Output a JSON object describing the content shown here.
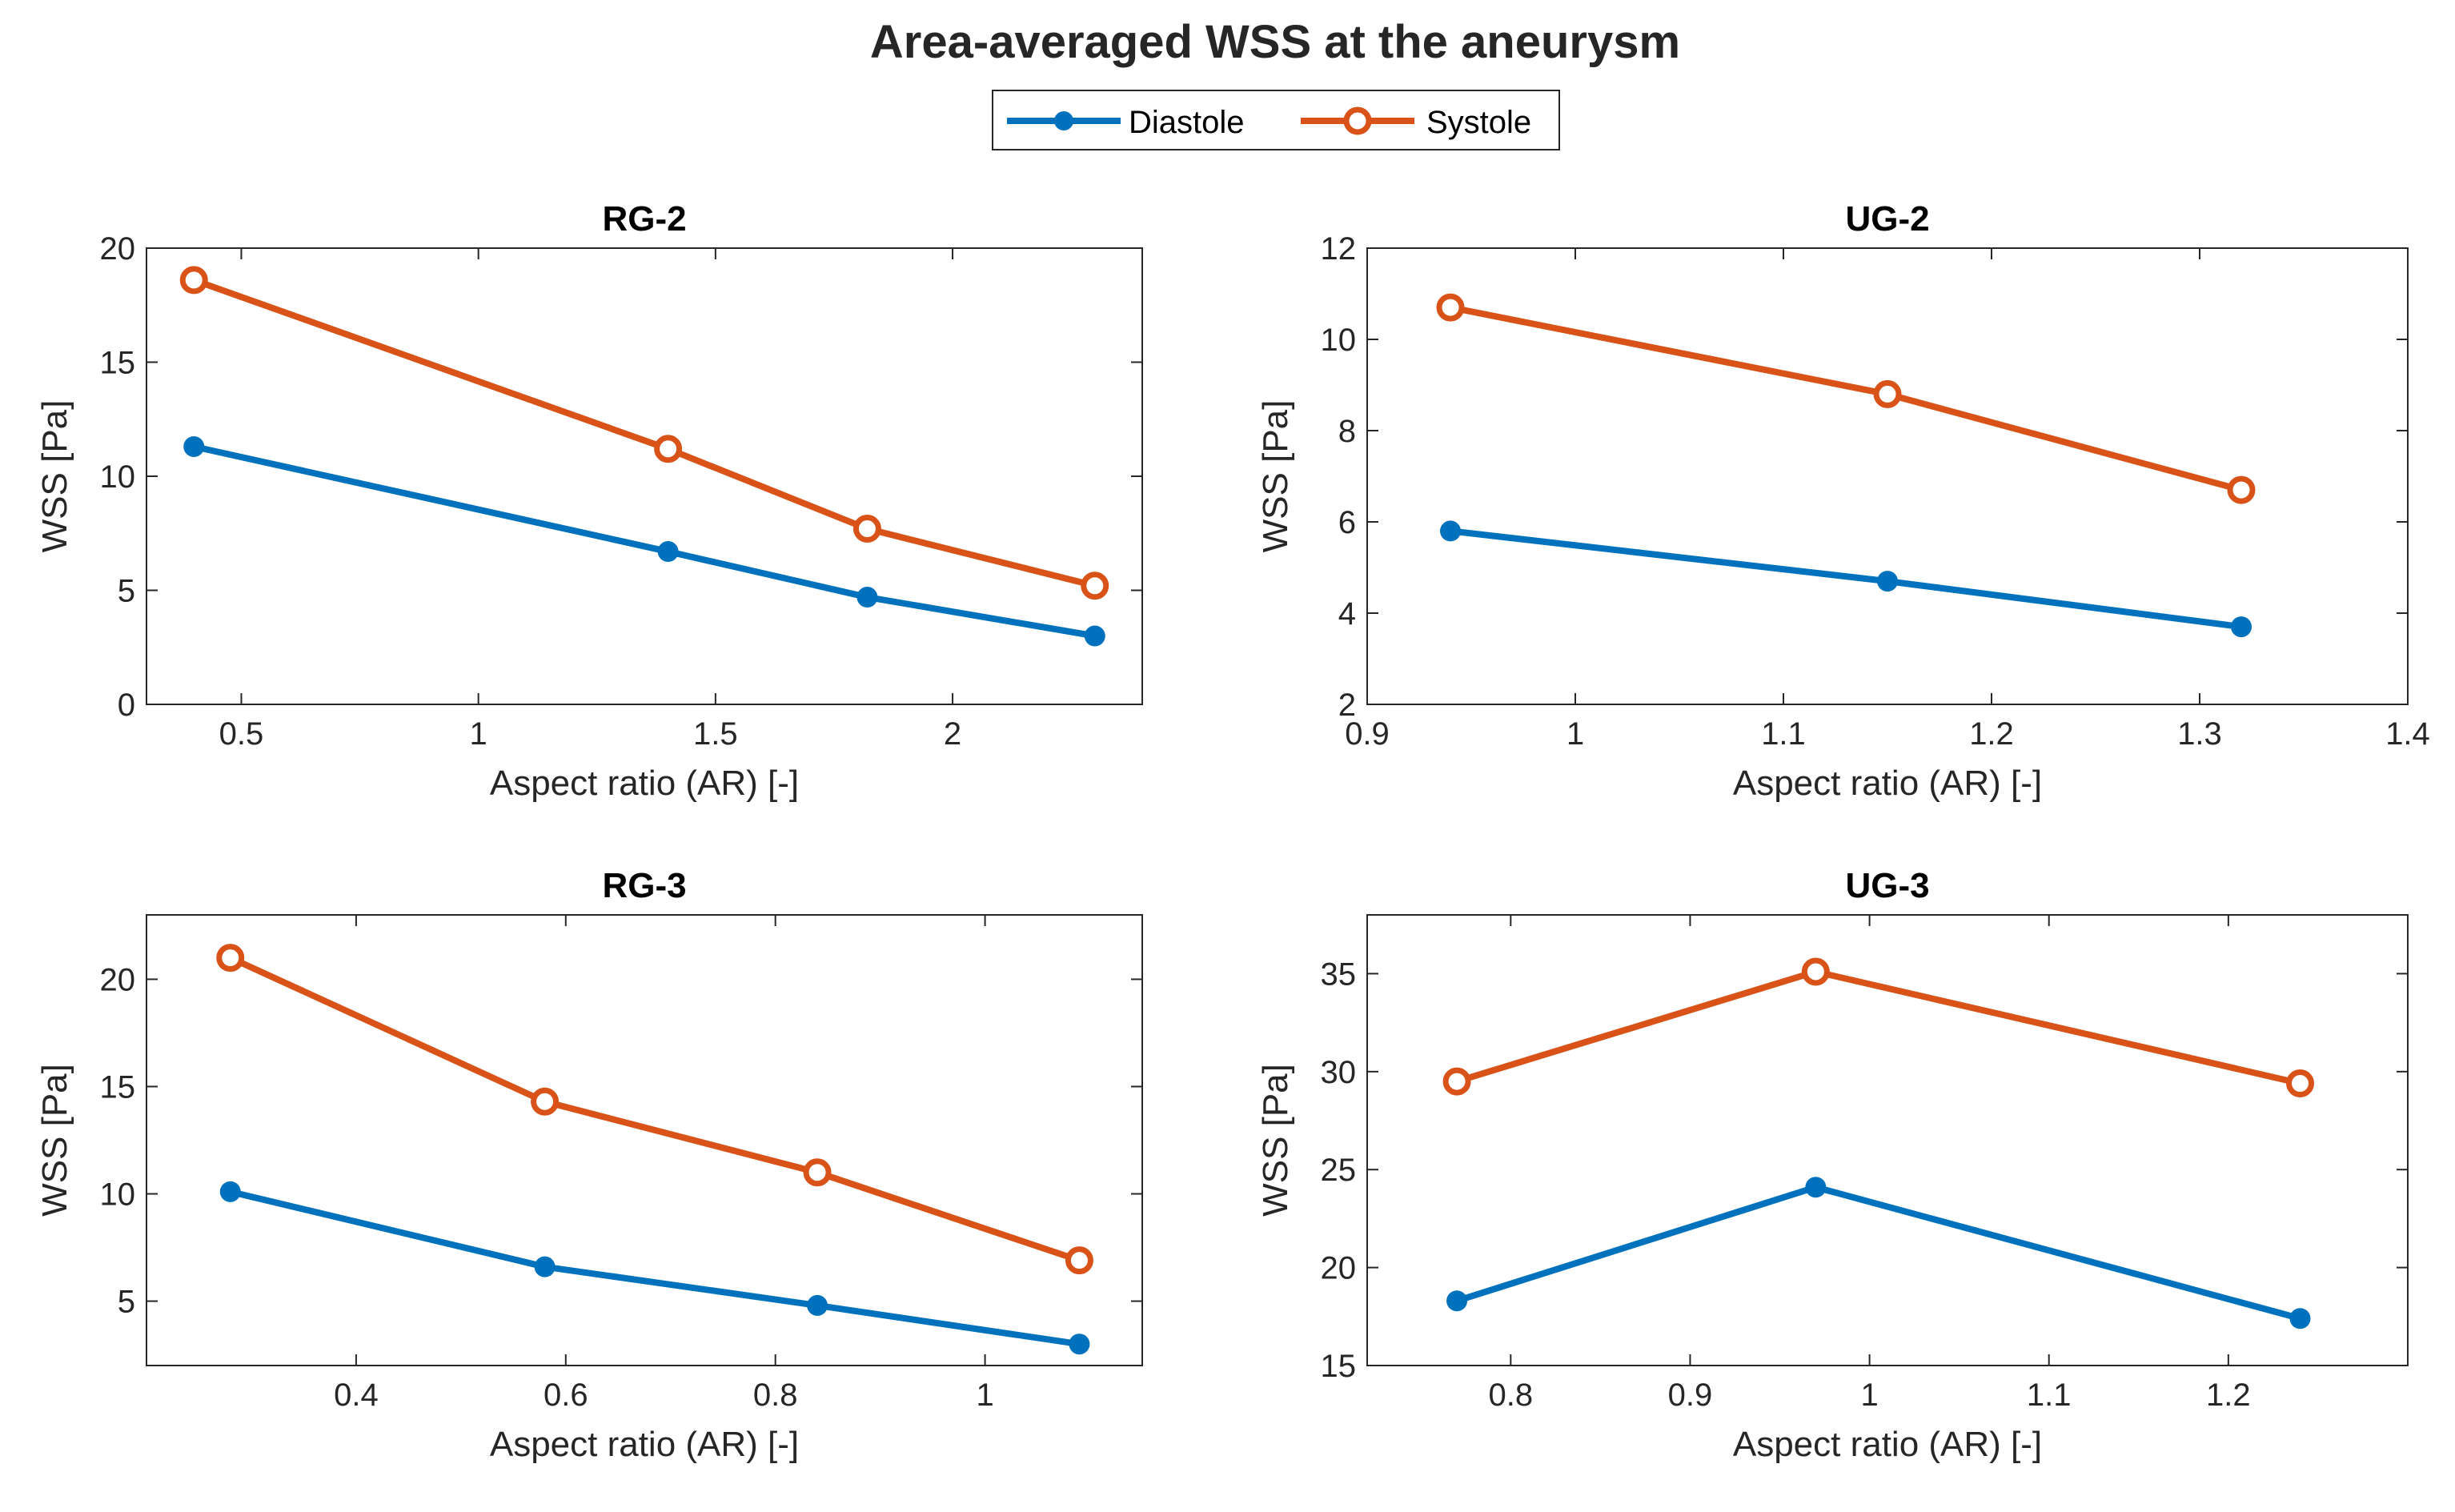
{
  "figure": {
    "title": "Area-averaged WSS at the aneurysm"
  },
  "legend": {
    "entries": [
      {
        "name": "Diastole",
        "color": "#0072BD",
        "marker": "filled-circle"
      },
      {
        "name": "Systole",
        "color": "#D95319",
        "marker": "open-circle"
      }
    ]
  },
  "chart_data": [
    {
      "type": "line",
      "title": "RG-2",
      "xlabel": "Aspect ratio (AR) [-]",
      "ylabel": "WSS [Pa]",
      "xlim": [
        0.3,
        2.4
      ],
      "ylim": [
        0,
        20
      ],
      "xticks": [
        0.5,
        1,
        1.5,
        2
      ],
      "xtick_labels": [
        "0.5",
        "1",
        "1.5",
        "2"
      ],
      "yticks": [
        0,
        5,
        10,
        15,
        20
      ],
      "ytick_labels": [
        "0",
        "5",
        "10",
        "15",
        "20"
      ],
      "x": [
        0.4,
        1.4,
        1.82,
        2.3
      ],
      "series": [
        {
          "name": "Diastole",
          "values": [
            11.3,
            6.7,
            4.7,
            3.0
          ]
        },
        {
          "name": "Systole",
          "values": [
            18.6,
            11.2,
            7.7,
            5.2
          ]
        }
      ]
    },
    {
      "type": "line",
      "title": "UG-2",
      "xlabel": "Aspect ratio (AR) [-]",
      "ylabel": "WSS [Pa]",
      "xlim": [
        0.9,
        1.4
      ],
      "ylim": [
        2,
        12
      ],
      "xticks": [
        0.9,
        1.0,
        1.1,
        1.2,
        1.3,
        1.4
      ],
      "xtick_labels": [
        "0.9",
        "1",
        "1.1",
        "1.2",
        "1.3",
        "1.4"
      ],
      "yticks": [
        2,
        4,
        6,
        8,
        10,
        12
      ],
      "ytick_labels": [
        "2",
        "4",
        "6",
        "8",
        "10",
        "12"
      ],
      "x": [
        0.94,
        1.15,
        1.32
      ],
      "series": [
        {
          "name": "Diastole",
          "values": [
            5.8,
            4.7,
            3.7
          ]
        },
        {
          "name": "Systole",
          "values": [
            10.7,
            8.8,
            6.7
          ]
        }
      ]
    },
    {
      "type": "line",
      "title": "RG-3",
      "xlabel": "Aspect ratio (AR) [-]",
      "ylabel": "WSS [Pa]",
      "xlim": [
        0.2,
        1.15
      ],
      "ylim": [
        2,
        23
      ],
      "xticks": [
        0.4,
        0.6,
        0.8,
        1.0
      ],
      "xtick_labels": [
        "0.4",
        "0.6",
        "0.8",
        "1"
      ],
      "yticks": [
        5,
        10,
        15,
        20
      ],
      "ytick_labels": [
        "5",
        "10",
        "15",
        "20"
      ],
      "x": [
        0.28,
        0.58,
        0.84,
        1.09
      ],
      "series": [
        {
          "name": "Diastole",
          "values": [
            10.1,
            6.6,
            4.8,
            3.0
          ]
        },
        {
          "name": "Systole",
          "values": [
            21.0,
            14.3,
            11.0,
            6.9
          ]
        }
      ]
    },
    {
      "type": "line",
      "title": "UG-3",
      "xlabel": "Aspect ratio (AR) [-]",
      "ylabel": "WSS [Pa]",
      "xlim": [
        0.72,
        1.3
      ],
      "ylim": [
        15,
        38
      ],
      "xticks": [
        0.8,
        0.9,
        1.0,
        1.1,
        1.2
      ],
      "xtick_labels": [
        "0.8",
        "0.9",
        "1",
        "1.1",
        "1.2"
      ],
      "yticks": [
        15,
        20,
        25,
        30,
        35
      ],
      "ytick_labels": [
        "15",
        "20",
        "25",
        "30",
        "35"
      ],
      "x": [
        0.77,
        0.97,
        1.24
      ],
      "series": [
        {
          "name": "Diastole",
          "values": [
            18.3,
            24.1,
            17.4
          ]
        },
        {
          "name": "Systole",
          "values": [
            29.5,
            35.1,
            29.4
          ]
        }
      ]
    }
  ]
}
